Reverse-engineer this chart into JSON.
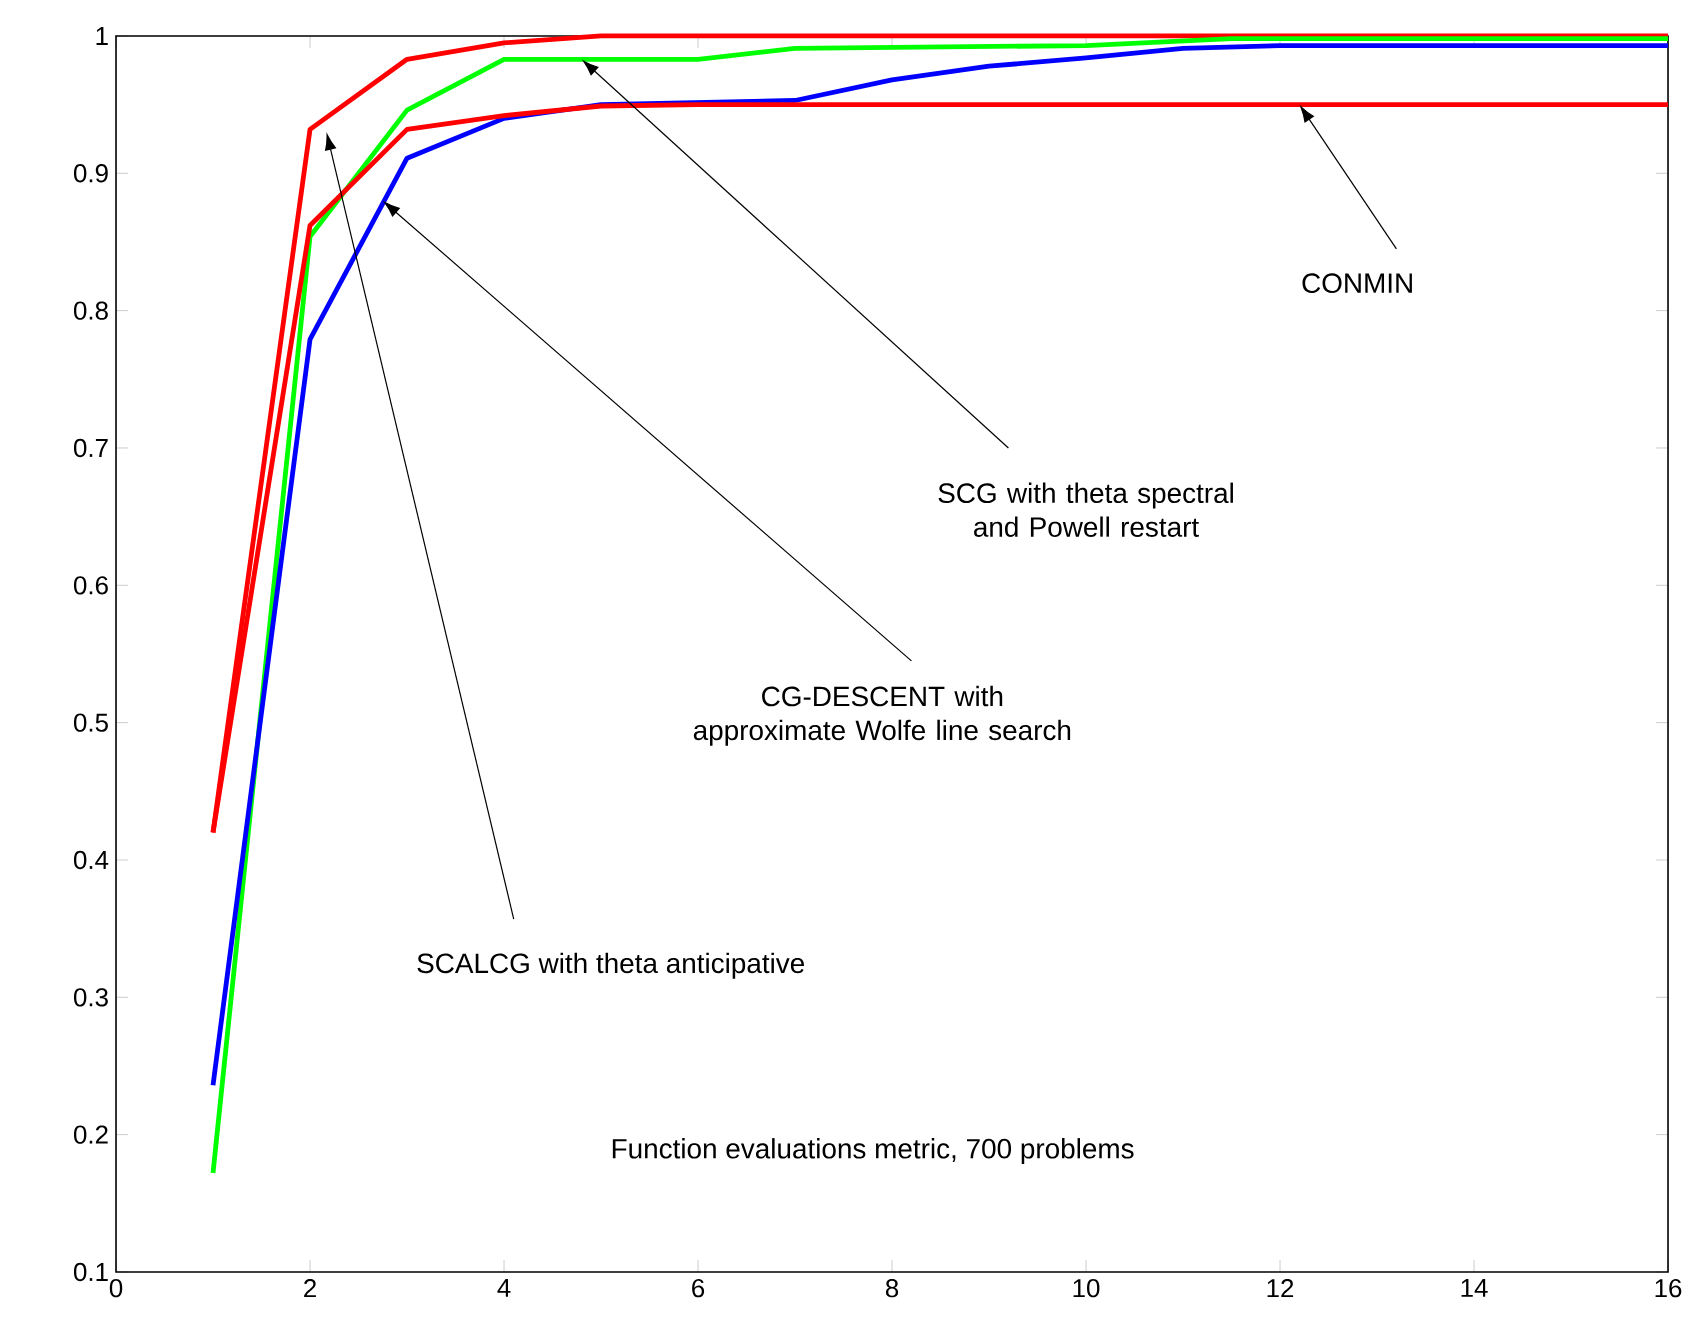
{
  "chart_data": {
    "type": "line",
    "xlim": [
      0,
      16
    ],
    "ylim": [
      0.1,
      1
    ],
    "xticks": [
      0,
      2,
      4,
      6,
      8,
      10,
      12,
      14,
      16
    ],
    "yticks": [
      0.1,
      0.2,
      0.3,
      0.4,
      0.5,
      0.6,
      0.7,
      0.8,
      0.9,
      1
    ],
    "grid": false,
    "marker": "none",
    "line_style": "solid",
    "series": [
      {
        "color": "#ff0000",
        "x": [
          1,
          2,
          3,
          4,
          5,
          16
        ],
        "values": [
          0.42,
          0.932,
          0.983,
          0.995,
          1.0,
          1.0
        ]
      },
      {
        "color": "#00ff00",
        "x": [
          1,
          2,
          3,
          4,
          6,
          7,
          10,
          11.5,
          16
        ],
        "values": [
          0.172,
          0.854,
          0.946,
          0.983,
          0.983,
          0.991,
          0.993,
          0.998,
          0.998
        ]
      },
      {
        "color": "#0000ff",
        "x": [
          1,
          2,
          3,
          4,
          5,
          7,
          8,
          9,
          10,
          11,
          12,
          16
        ],
        "values": [
          0.236,
          0.779,
          0.911,
          0.94,
          0.95,
          0.953,
          0.968,
          0.978,
          0.984,
          0.991,
          0.993,
          0.993
        ]
      },
      {
        "color": "#ff0000",
        "x": [
          1,
          2,
          3,
          4,
          5,
          6,
          16
        ],
        "values": [
          0.42,
          0.862,
          0.932,
          0.942,
          0.949,
          0.95,
          0.95
        ]
      }
    ],
    "annotations": [
      {
        "text": "CONMIN",
        "x": 12.2,
        "y": 0.95
      },
      {
        "text": "SCG with theta spectral and Powell restart",
        "x": 4.8,
        "y": 0.983
      },
      {
        "text": "CG-DESCENT with approximate Wolfe line search",
        "x": 2.75,
        "y": 0.88
      },
      {
        "text": "SCALCG with theta anticipative",
        "x": 2.17,
        "y": 0.93
      },
      "Function evaluations metric, 700 problems"
    ]
  }
}
